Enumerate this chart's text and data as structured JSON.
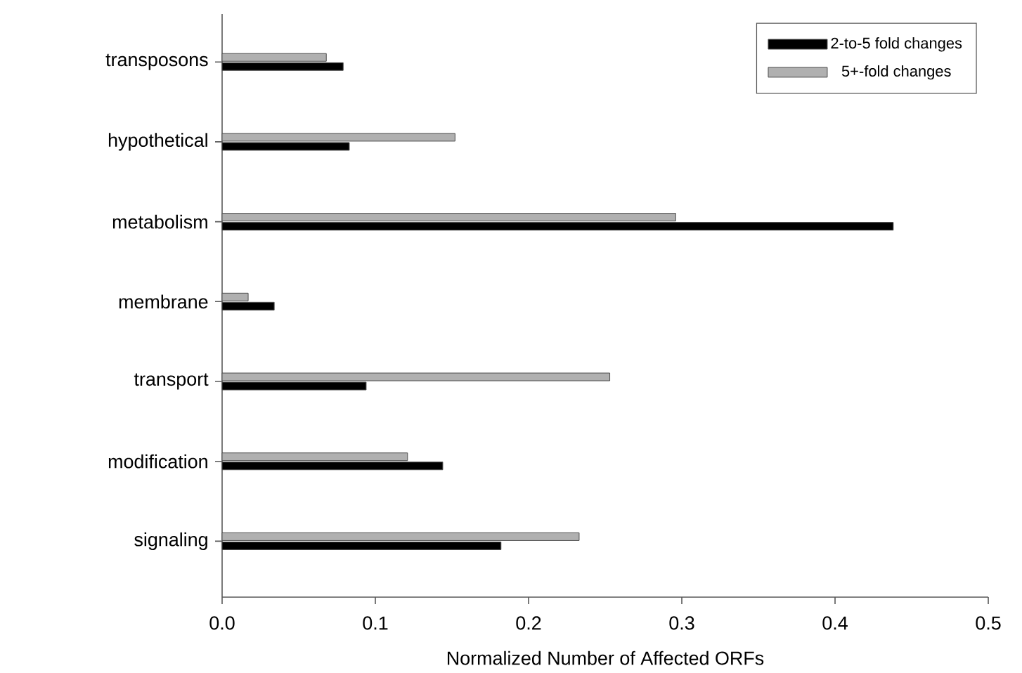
{
  "chart_data": {
    "type": "bar",
    "orientation": "horizontal",
    "xlabel": "Normalized Number of Affected ORFs",
    "categories": [
      "transposons",
      "hypothetical",
      "metabolism",
      "membrane",
      "transport",
      "modification",
      "signaling"
    ],
    "series": [
      {
        "name": "2-to-5 fold changes",
        "color": "#000000",
        "values": [
          0.079,
          0.083,
          0.438,
          0.034,
          0.094,
          0.144,
          0.182
        ]
      },
      {
        "name": "5+-fold changes",
        "color": "#b0b0b0",
        "values": [
          0.068,
          0.152,
          0.296,
          0.017,
          0.253,
          0.121,
          0.233
        ]
      }
    ],
    "xlim": [
      0,
      0.5
    ],
    "xticks": [
      {
        "value": 0,
        "label": "0.0"
      },
      0.1,
      0.2,
      0.3,
      0.4,
      0.5
    ],
    "grid": false,
    "legend": "top right"
  }
}
